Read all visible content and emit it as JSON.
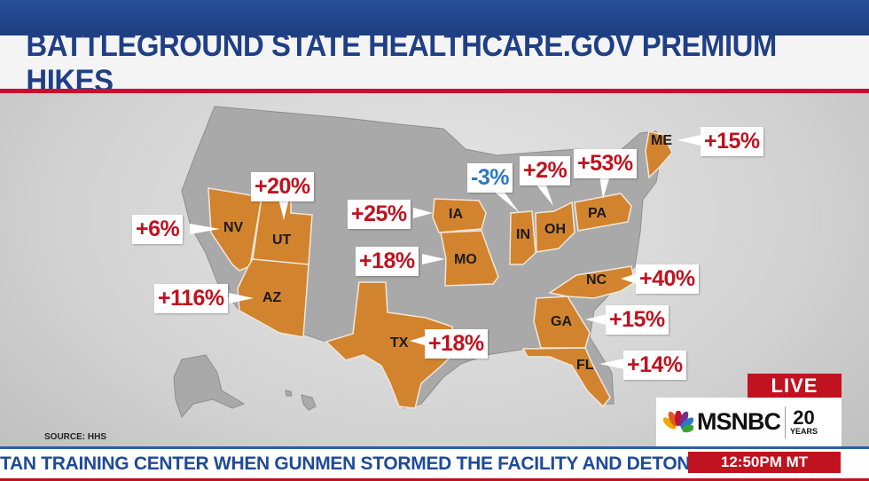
{
  "title": "BATTLEGROUND STATE HEALTHCARE.GOV PREMIUM HIKES",
  "source": "SOURCE: HHS",
  "states": [
    {
      "abbr": "NV",
      "change": "+6%",
      "color": "red"
    },
    {
      "abbr": "UT",
      "change": "+20%",
      "color": "red"
    },
    {
      "abbr": "AZ",
      "change": "+116%",
      "color": "red"
    },
    {
      "abbr": "TX",
      "change": "+18%",
      "color": "red"
    },
    {
      "abbr": "IA",
      "change": "+25%",
      "color": "red"
    },
    {
      "abbr": "MO",
      "change": "+18%",
      "color": "red"
    },
    {
      "abbr": "IN",
      "change": "-3%",
      "color": "blue"
    },
    {
      "abbr": "OH",
      "change": "+2%",
      "color": "red"
    },
    {
      "abbr": "PA",
      "change": "+53%",
      "color": "red"
    },
    {
      "abbr": "ME",
      "change": "+15%",
      "color": "red"
    },
    {
      "abbr": "NC",
      "change": "+40%",
      "color": "red"
    },
    {
      "abbr": "GA",
      "change": "+15%",
      "color": "red"
    },
    {
      "abbr": "FL",
      "change": "+14%",
      "color": "red"
    }
  ],
  "colors": {
    "highlight": "#d2832e",
    "base": "#a9a9a9",
    "increase": "#c0121f",
    "decrease": "#2a79c2"
  },
  "broadcast": {
    "live": "LIVE",
    "network": "MSNBC",
    "anniversary_number": "20",
    "anniversary_word": "YEARS",
    "ticker": "TAN TRAINING CENTER WHEN GUNMEN STORMED THE FACILITY AND DETON",
    "time": "12:50PM MT"
  }
}
